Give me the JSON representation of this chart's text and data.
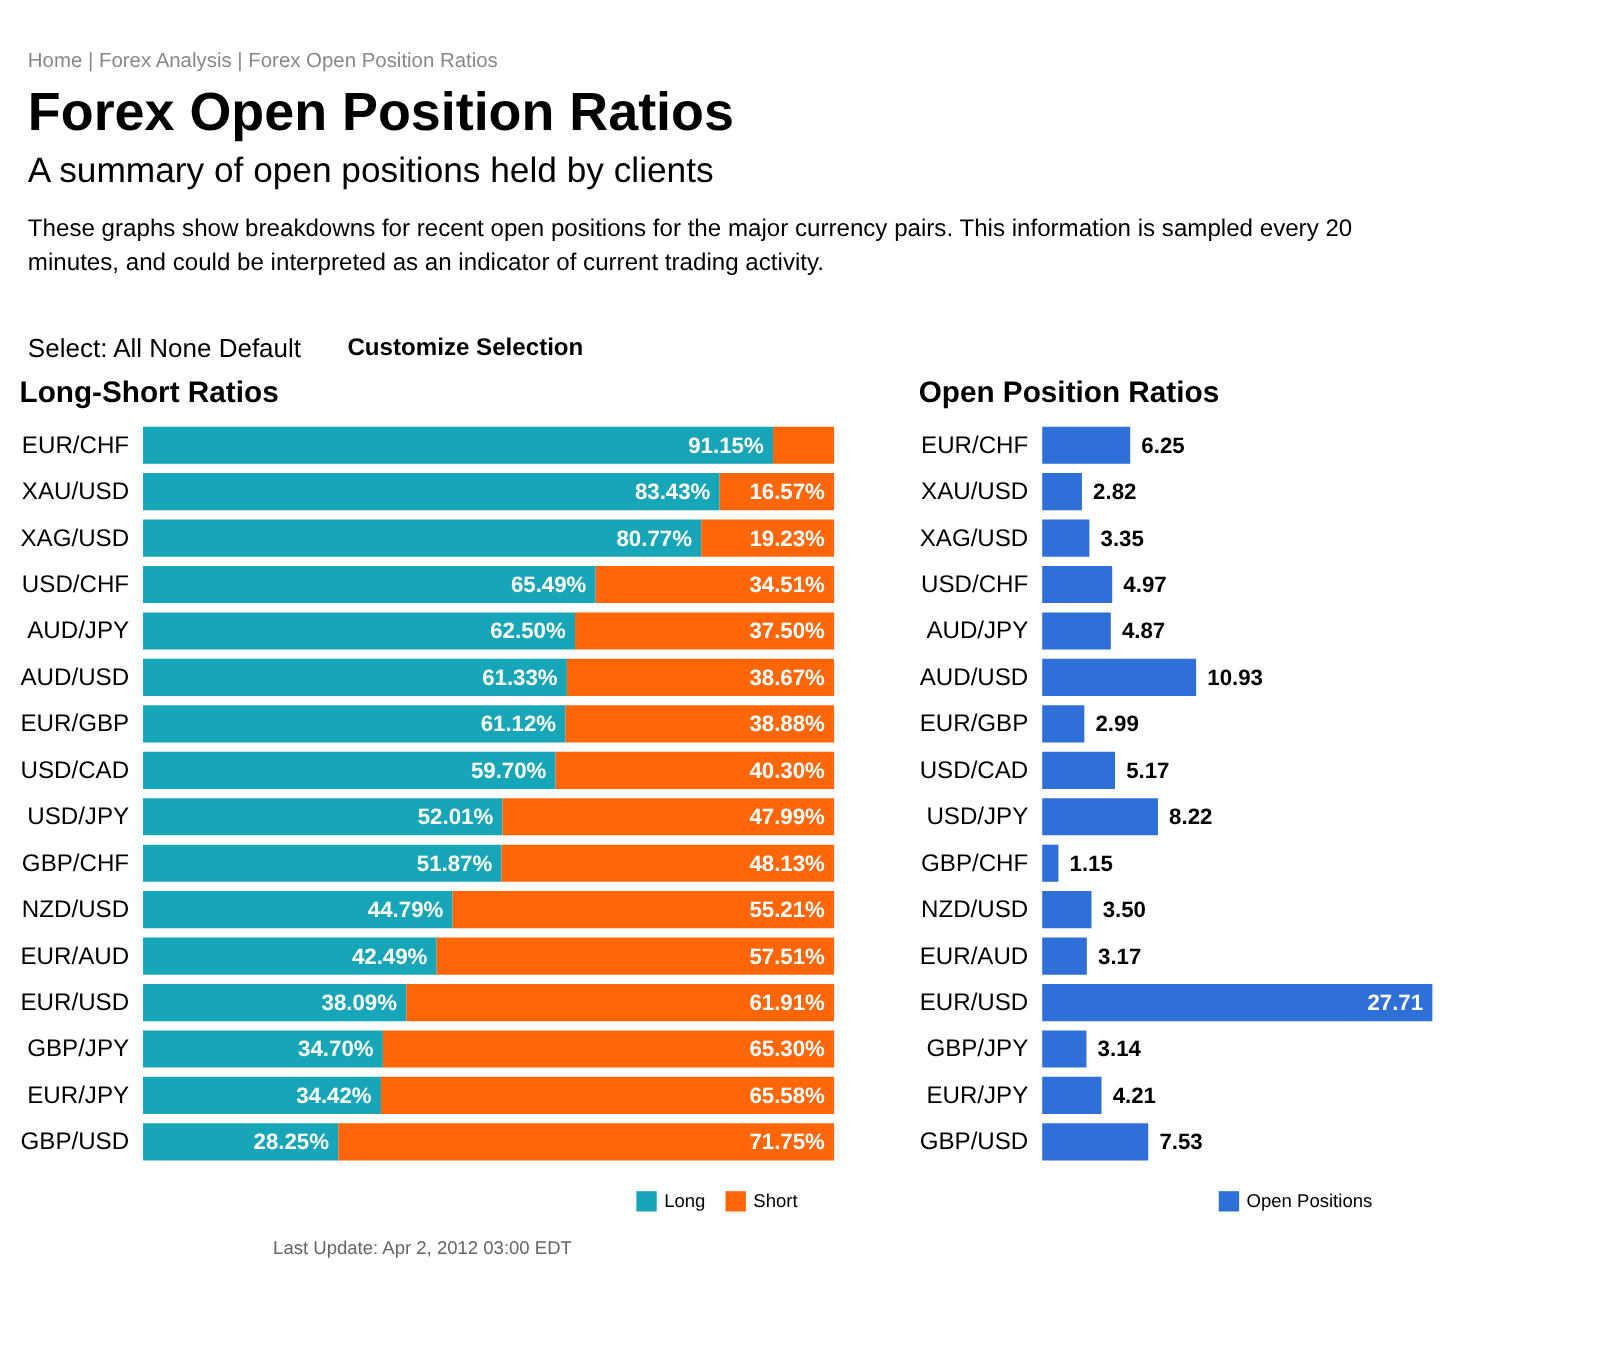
{
  "chart_data": [
    {
      "type": "other",
      "title": "Forex Open Position Ratios",
      "subtitle": "A summary of open positions held by clients",
      "annotations": [
        "Home | Forex Analysis | Forex Open Position Ratios",
        "These graphs show breakdowns for recent open positions for the major currency pairs. This information is sampled every 20 minutes, and could be interpreted as an indicator of current trading activity.",
        "Select: All None Default",
        "Customize Selection"
      ]
    },
    {
      "type": "bar",
      "title": "Long-Short Ratios",
      "orientation": "horizontal",
      "stacked": true,
      "legend": "bottom right",
      "categories": [
        "EUR/CHF",
        "XAU/USD",
        "XAG/USD",
        "USD/CHF",
        "AUD/JPY",
        "AUD/USD",
        "EUR/GBP",
        "USD/CAD",
        "USD/JPY",
        "GBP/CHF",
        "NZD/USD",
        "EUR/AUD",
        "EUR/USD",
        "GBP/JPY",
        "EUR/JPY",
        "GBP/USD"
      ],
      "series": [
        {
          "name": "Long",
          "color": "#17a5b8",
          "values": [
            91.15,
            83.43,
            80.77,
            65.49,
            62.5,
            61.33,
            61.12,
            59.7,
            52.01,
            51.87,
            44.79,
            42.49,
            38.09,
            34.7,
            34.42,
            28.25
          ],
          "value_labels": [
            "91.15%",
            "83.43%",
            "80.77%",
            "65.49%",
            "62.50%",
            "61.33%",
            "61.12%",
            "59.70%",
            "52.01%",
            "51.87%",
            "44.79%",
            "42.49%",
            "38.09%",
            "34.70%",
            "34.42%",
            "28.25%"
          ]
        },
        {
          "name": "Short",
          "color": "#ff6608",
          "values": [
            8.85,
            16.57,
            19.23,
            34.51,
            37.5,
            38.67,
            38.88,
            40.3,
            47.99,
            48.13,
            55.21,
            57.51,
            61.91,
            65.3,
            65.58,
            71.75
          ],
          "value_labels": [
            null,
            "16.57%",
            "19.23%",
            "34.51%",
            "37.50%",
            "38.67%",
            "38.88%",
            "40.30%",
            "47.99%",
            "48.13%",
            "55.21%",
            "57.51%",
            "61.91%",
            "65.30%",
            "65.58%",
            "71.75%"
          ]
        }
      ],
      "annotations": [
        "Last Update: Apr 2, 2012 03:00 EDT"
      ]
    },
    {
      "type": "bar",
      "title": "Open Position Ratios",
      "orientation": "horizontal",
      "legend": "bottom right",
      "categories": [
        "EUR/CHF",
        "XAU/USD",
        "XAG/USD",
        "USD/CHF",
        "AUD/JPY",
        "AUD/USD",
        "EUR/GBP",
        "USD/CAD",
        "USD/JPY",
        "GBP/CHF",
        "NZD/USD",
        "EUR/AUD",
        "EUR/USD",
        "GBP/JPY",
        "EUR/JPY",
        "GBP/USD"
      ],
      "series": [
        {
          "name": "Open Positions",
          "color": "#2f6fd8",
          "values": [
            6.25,
            2.82,
            3.35,
            4.97,
            4.87,
            10.93,
            2.99,
            5.17,
            8.22,
            1.15,
            3.5,
            3.17,
            27.71,
            3.14,
            4.21,
            7.53
          ],
          "value_labels": [
            "6.25",
            "2.82",
            "3.35",
            "4.97",
            "4.87",
            "10.93",
            "2.99",
            "5.17",
            "8.22",
            "1.15",
            "3.50",
            "3.17",
            "27.71",
            "3.14",
            "4.21",
            "7.53"
          ]
        }
      ]
    }
  ]
}
